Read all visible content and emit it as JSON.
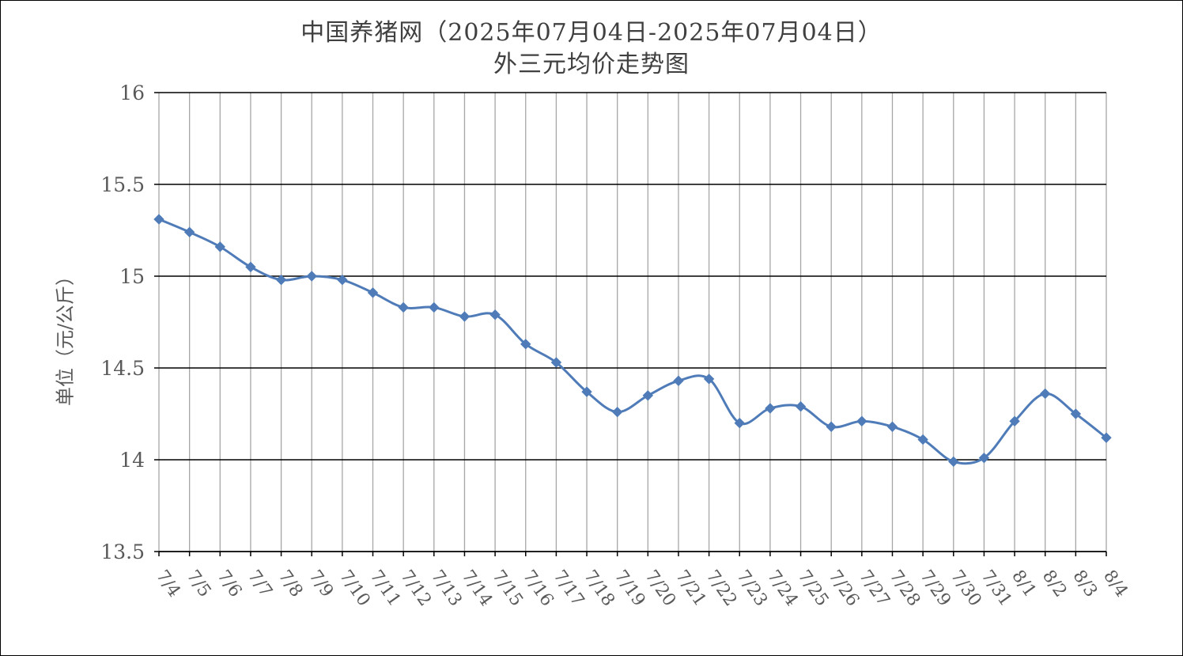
{
  "chart_data": {
    "type": "line",
    "title": "中国养猪网（2025年07月04日-2025年07月04日）",
    "subtitle": "外三元均价走势图",
    "xlabel": "",
    "ylabel": "单位（元/公斤）",
    "ylim": [
      13.5,
      16
    ],
    "yticks": [
      "16",
      "15.5",
      "15",
      "14.5",
      "14",
      "13.5"
    ],
    "ytick_values": [
      16,
      15.5,
      15,
      14.5,
      14,
      13.5
    ],
    "grid": true,
    "legend": "none",
    "line_color": "#4f7cb8",
    "categories": [
      "7/4",
      "7/5",
      "7/6",
      "7/7",
      "7/8",
      "7/9",
      "7/10",
      "7/11",
      "7/12",
      "7/13",
      "7/14",
      "7/15",
      "7/16",
      "7/17",
      "7/18",
      "7/19",
      "7/20",
      "7/21",
      "7/22",
      "7/23",
      "7/24",
      "7/25",
      "7/26",
      "7/27",
      "7/28",
      "7/29",
      "7/30",
      "7/31",
      "8/1",
      "8/2",
      "8/3",
      "8/4"
    ],
    "series": [
      {
        "values": [
          15.31,
          15.24,
          15.16,
          15.05,
          14.98,
          15.0,
          14.98,
          14.91,
          14.83,
          14.83,
          14.78,
          14.79,
          14.63,
          14.53,
          14.37,
          14.26,
          14.35,
          14.43,
          14.44,
          14.2,
          14.28,
          14.29,
          14.18,
          14.21,
          14.18,
          14.11,
          13.99,
          14.01,
          14.21,
          14.36,
          14.25,
          14.12
        ]
      }
    ]
  }
}
